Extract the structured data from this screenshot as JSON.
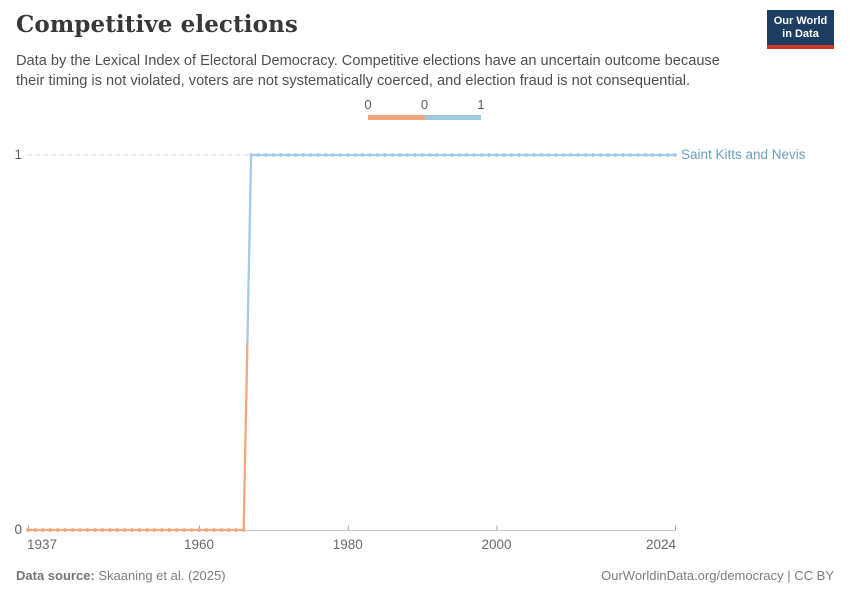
{
  "header": {
    "title": "Competitive elections",
    "subtitle": "Data by the Lexical Index of Electoral Democracy. Competitive elections have an uncertain outcome because their timing is not violated, voters are not systematically coerced, and election fraud is not consequential.",
    "logo": {
      "line1": "Our World",
      "line2": "in Data",
      "bg_color": "#1d3d63",
      "bar_color": "#cc3929"
    }
  },
  "footer": {
    "source_label": "Data source:",
    "source_value": " Skaaning et al. (2025)",
    "note": "OurWorldinData.org/democracy | CC BY"
  },
  "chart_data": {
    "type": "line",
    "title": "Competitive elections",
    "xlabel": "",
    "ylabel": "",
    "xlim": [
      1937,
      2024
    ],
    "ylim": [
      0,
      1
    ],
    "x_ticks": [
      1937,
      1960,
      1980,
      2000,
      2024
    ],
    "y_ticks": [
      0,
      1
    ],
    "y_gridlines": {
      "0": "solid",
      "1": "dashed"
    },
    "legend_position": "top-center",
    "legend": {
      "labels": [
        "0",
        "0",
        "1"
      ],
      "segments": [
        {
          "value": "0",
          "color": "#F2A47C"
        },
        {
          "value": "1",
          "color": "#9FC8E1"
        }
      ]
    },
    "value_colors": {
      "0": "#F4A57E",
      "1": "#A4CBE3"
    },
    "series": [
      {
        "name": "Saint Kitts and Nevis",
        "label_color": "#6D9DBF",
        "steps": [
          {
            "from_year": 1937,
            "to_year": 1966,
            "value": 0
          },
          {
            "from_year": 1967,
            "to_year": 2024,
            "value": 1
          }
        ]
      }
    ]
  }
}
